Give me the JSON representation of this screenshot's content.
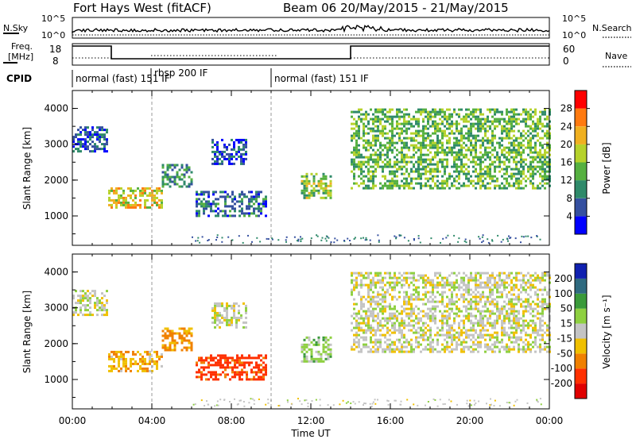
{
  "header": {
    "title": "Fort Hays West (fitACF)",
    "beam_info": "Beam 06  20/May/2015 - 21/May/2015"
  },
  "strip": {
    "nsky_label": "N.Sky",
    "nsky_tick_hi": "10^5",
    "nsky_tick_lo": "10^0",
    "nsearch_tick_hi": "10^5",
    "nsearch_tick_lo": "10^0",
    "nsearch_label": "N.Search",
    "freq_label_1": "Freq.",
    "freq_label_2": "[MHz]",
    "freq_tick_hi": "18",
    "freq_tick_lo": "8",
    "nave_tick_hi": "60",
    "nave_tick_lo": "0",
    "nave_label": "Nave",
    "cpid_label": "CPID",
    "cpid_1": "normal (fast) 151 IF",
    "cpid_2": "rbsp 200 IF",
    "cpid_3": "normal (fast) 151 IF"
  },
  "panels": {
    "ylabel": "Slant Range [km]",
    "y_ticks": [
      "1000",
      "2000",
      "3000",
      "4000"
    ],
    "x_ticks": [
      "00:00",
      "04:00",
      "08:00",
      "12:00",
      "16:00",
      "20:00",
      "00:00"
    ],
    "xlabel": "Time UT"
  },
  "colorbars": {
    "power_label": "Power [dB]",
    "power_ticks": [
      "4",
      "8",
      "12",
      "16",
      "20",
      "24",
      "28"
    ],
    "power_colors": [
      "#0000ff",
      "#3550a0",
      "#2f8a6a",
      "#55b040",
      "#b6d22b",
      "#f0b020",
      "#ff7a10",
      "#ff0000"
    ],
    "velocity_label": "Velocity [m s⁻¹]",
    "velocity_ticks": [
      "200",
      "100",
      "50",
      "15",
      "-15",
      "-50",
      "-100",
      "-200"
    ],
    "velocity_colors": [
      "#1020b0",
      "#2f6a80",
      "#3a9a3a",
      "#8ed040",
      "#c4c4c4",
      "#f0c000",
      "#f08000",
      "#ff3000",
      "#e00000"
    ]
  },
  "chart_data": [
    {
      "type": "heatmap",
      "title": "Power [dB]",
      "xlabel": "Time UT",
      "ylabel": "Slant Range [km]",
      "xlim": [
        "00:00",
        "24:00"
      ],
      "ylim": [
        180,
        4500
      ],
      "clim": [
        0,
        32
      ],
      "echo_regions": [
        {
          "t": [
            0.0,
            1.8
          ],
          "range_km": [
            2800,
            3500
          ],
          "power_db": 6
        },
        {
          "t": [
            1.8,
            4.5
          ],
          "range_km": [
            1250,
            1800
          ],
          "power_db": 20
        },
        {
          "t": [
            4.5,
            6.0
          ],
          "range_km": [
            1800,
            2450
          ],
          "power_db": 10
        },
        {
          "t": [
            6.2,
            9.7
          ],
          "range_km": [
            1000,
            1700
          ],
          "power_db": 8
        },
        {
          "t": [
            7.0,
            8.7
          ],
          "range_km": [
            2450,
            3150
          ],
          "power_db": 6
        },
        {
          "t": [
            11.5,
            13.0
          ],
          "range_km": [
            1500,
            2200
          ],
          "power_db": 16
        },
        {
          "t": [
            14.0,
            24.0
          ],
          "range_km": [
            1800,
            4000
          ],
          "power_db": 14
        }
      ]
    },
    {
      "type": "heatmap",
      "title": "Velocity [m s⁻¹]",
      "xlabel": "Time UT",
      "ylabel": "Slant Range [km]",
      "xlim": [
        "00:00",
        "24:00"
      ],
      "ylim": [
        180,
        4500
      ],
      "clim": [
        -200,
        200
      ],
      "echo_regions": [
        {
          "t": [
            0.0,
            1.8
          ],
          "range_km": [
            2800,
            3500
          ],
          "velocity": 0
        },
        {
          "t": [
            1.8,
            4.5
          ],
          "range_km": [
            1250,
            1800
          ],
          "velocity": -40
        },
        {
          "t": [
            4.5,
            6.0
          ],
          "range_km": [
            1800,
            2450
          ],
          "velocity": -60
        },
        {
          "t": [
            6.2,
            9.7
          ],
          "range_km": [
            1000,
            1700
          ],
          "velocity": -120
        },
        {
          "t": [
            7.0,
            8.7
          ],
          "range_km": [
            2450,
            3150
          ],
          "velocity": 0
        },
        {
          "t": [
            11.5,
            13.0
          ],
          "range_km": [
            1500,
            2200
          ],
          "velocity": 30
        },
        {
          "t": [
            14.0,
            24.0
          ],
          "range_km": [
            1800,
            4000
          ],
          "velocity": 0
        }
      ]
    }
  ]
}
